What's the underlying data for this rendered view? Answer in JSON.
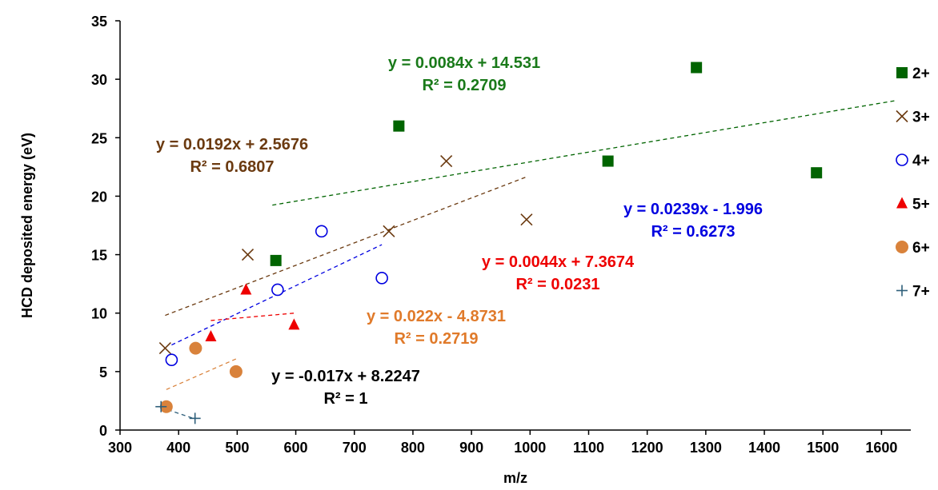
{
  "chart_data": {
    "type": "scatter",
    "title": "",
    "xlabel": "m/z",
    "ylabel": "HCD deposited energy (eV)",
    "xlim": [
      300,
      1650
    ],
    "ylim": [
      0,
      35
    ],
    "xticks": [
      300,
      400,
      500,
      600,
      700,
      800,
      900,
      1000,
      1100,
      1200,
      1300,
      1400,
      1500,
      1600
    ],
    "yticks": [
      0,
      5,
      10,
      15,
      20,
      25,
      30,
      35
    ],
    "grid": false,
    "legend_position": "right",
    "series": [
      {
        "name": "2+",
        "marker": "square",
        "color": "#006400",
        "x": [
          566,
          776,
          1133,
          1284,
          1489
        ],
        "y": [
          14.5,
          26,
          23,
          31,
          22
        ],
        "trend_label": "y = 0.0084x + 14.531",
        "r2_label": "R² = 0.2709",
        "slope": 0.0084,
        "intercept": 14.531,
        "trend_x": [
          560,
          1625
        ]
      },
      {
        "name": "3+",
        "marker": "x",
        "color": "#6b3a10",
        "x": [
          377,
          518,
          759,
          857,
          994
        ],
        "y": [
          7,
          15,
          17,
          23,
          18
        ],
        "trend_label": "y = 0.0192x + 2.5676",
        "r2_label": "R² = 0.6807",
        "slope": 0.0192,
        "intercept": 2.5676,
        "trend_x": [
          377,
          994
        ]
      },
      {
        "name": "4+",
        "marker": "circle-open",
        "color": "#0000e0",
        "x": [
          388,
          569,
          644,
          747
        ],
        "y": [
          6,
          12,
          17,
          13
        ],
        "trend_label": "y = 0.0239x - 1.996",
        "r2_label": "R² = 0.6273",
        "slope": 0.0239,
        "intercept": -1.996,
        "trend_x": [
          388,
          747
        ]
      },
      {
        "name": "5+",
        "marker": "triangle",
        "color": "#ee0000",
        "x": [
          455,
          515,
          597
        ],
        "y": [
          8,
          12,
          9
        ],
        "trend_label": "y = 0.0044x + 7.3674",
        "r2_label": "R² = 0.0231",
        "slope": 0.0044,
        "intercept": 7.3674,
        "trend_x": [
          455,
          597
        ]
      },
      {
        "name": "6+",
        "marker": "circle-filled",
        "color": "#d9823b",
        "x": [
          379,
          429,
          498
        ],
        "y": [
          2,
          7,
          5
        ],
        "trend_label": "y = 0.022x - 4.8731",
        "r2_label": "R² = 0.2719",
        "slope": 0.022,
        "intercept": -4.8731,
        "trend_x": [
          379,
          498
        ]
      },
      {
        "name": "7+",
        "marker": "plus",
        "color": "#2e5f7a",
        "x": [
          370,
          428
        ],
        "y": [
          2,
          1
        ],
        "trend_label": "y = -0.017x + 8.2247",
        "r2_label": "R² = 1",
        "slope": -0.017,
        "intercept": 8.2247,
        "trend_x": [
          370,
          428
        ]
      }
    ]
  }
}
